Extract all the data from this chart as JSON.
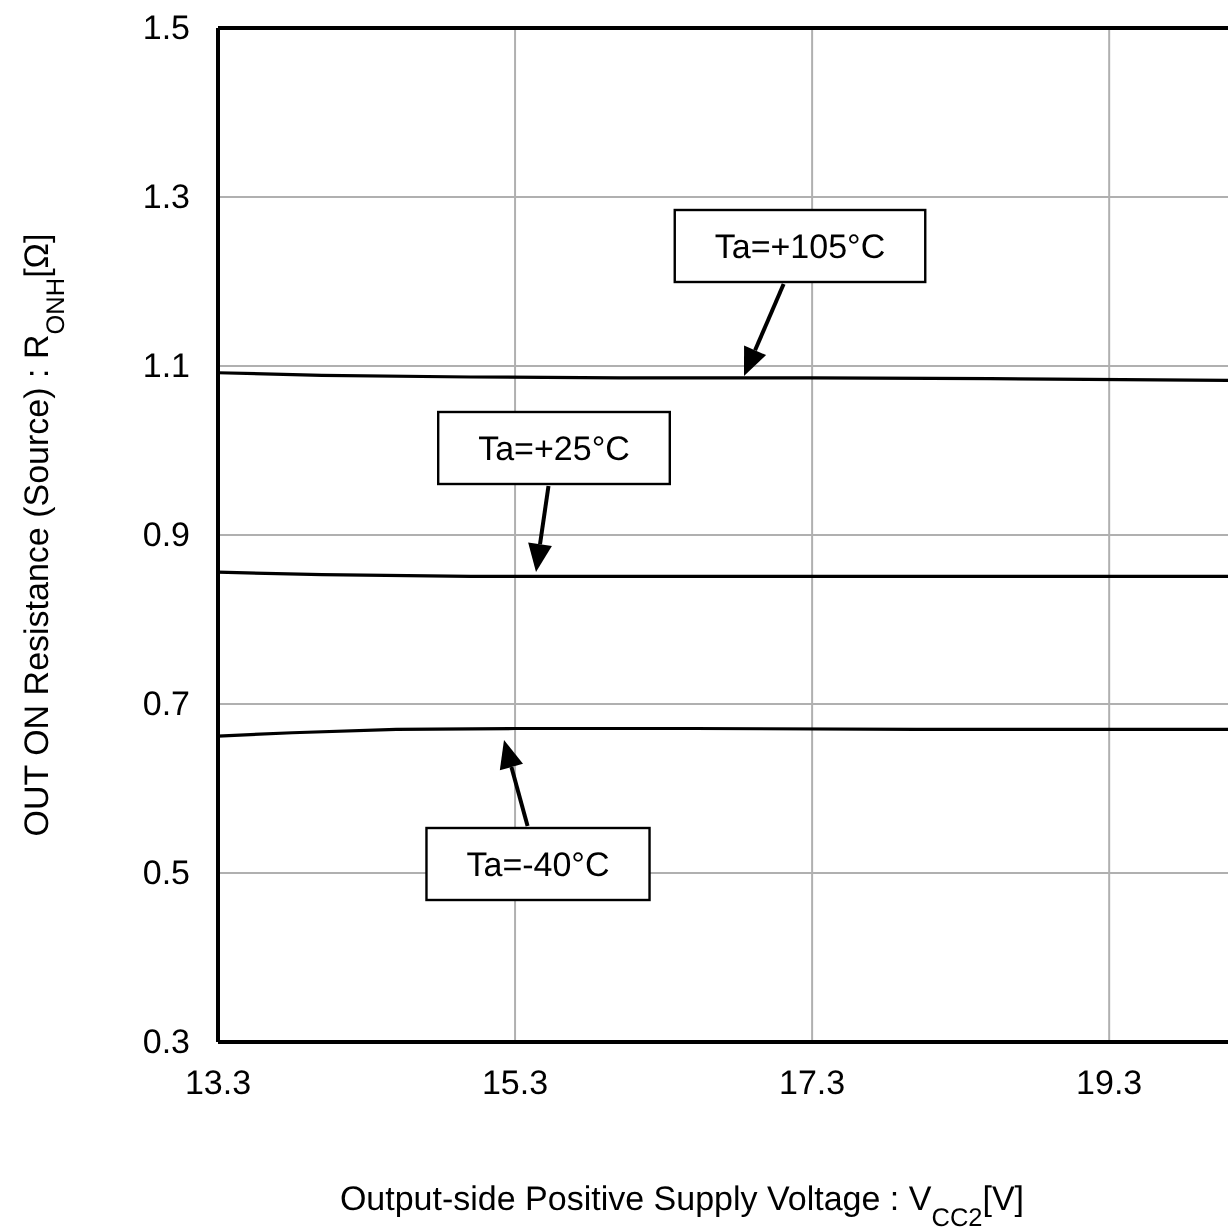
{
  "chart_data": {
    "type": "line",
    "xlabel": "Output-side Positive Supply Voltage : V$_{CC2}$[V]",
    "ylabel": "OUT ON Resistance (Source) : R$_{ONH}$[Ω]",
    "xlim": [
      13.3,
      20.1
    ],
    "ylim": [
      0.3,
      1.5
    ],
    "xticks": [
      13.3,
      15.3,
      17.3,
      19.3
    ],
    "yticks": [
      0.3,
      0.5,
      0.7,
      0.9,
      1.1,
      1.3,
      1.5
    ],
    "grid": true,
    "marker": "none",
    "line_style": "solid",
    "series": [
      {
        "color": "#000000",
        "x": [
          13.3,
          14.0,
          15.0,
          16.0,
          17.3,
          18.5,
          20.1
        ],
        "values": [
          1.092,
          1.089,
          1.087,
          1.086,
          1.086,
          1.085,
          1.083
        ]
      },
      {
        "color": "#000000",
        "x": [
          13.3,
          14.0,
          15.0,
          16.0,
          17.3,
          18.5,
          20.1
        ],
        "values": [
          0.856,
          0.853,
          0.851,
          0.851,
          0.851,
          0.851,
          0.851
        ]
      },
      {
        "color": "#000000",
        "x": [
          13.3,
          13.8,
          14.5,
          15.3,
          16.5,
          18.0,
          20.1
        ],
        "values": [
          0.662,
          0.666,
          0.67,
          0.671,
          0.671,
          0.67,
          0.67
        ]
      }
    ],
    "annotations": [
      "Ta=+105°C",
      "Ta=+25°C",
      "Ta=-40°C"
    ]
  }
}
